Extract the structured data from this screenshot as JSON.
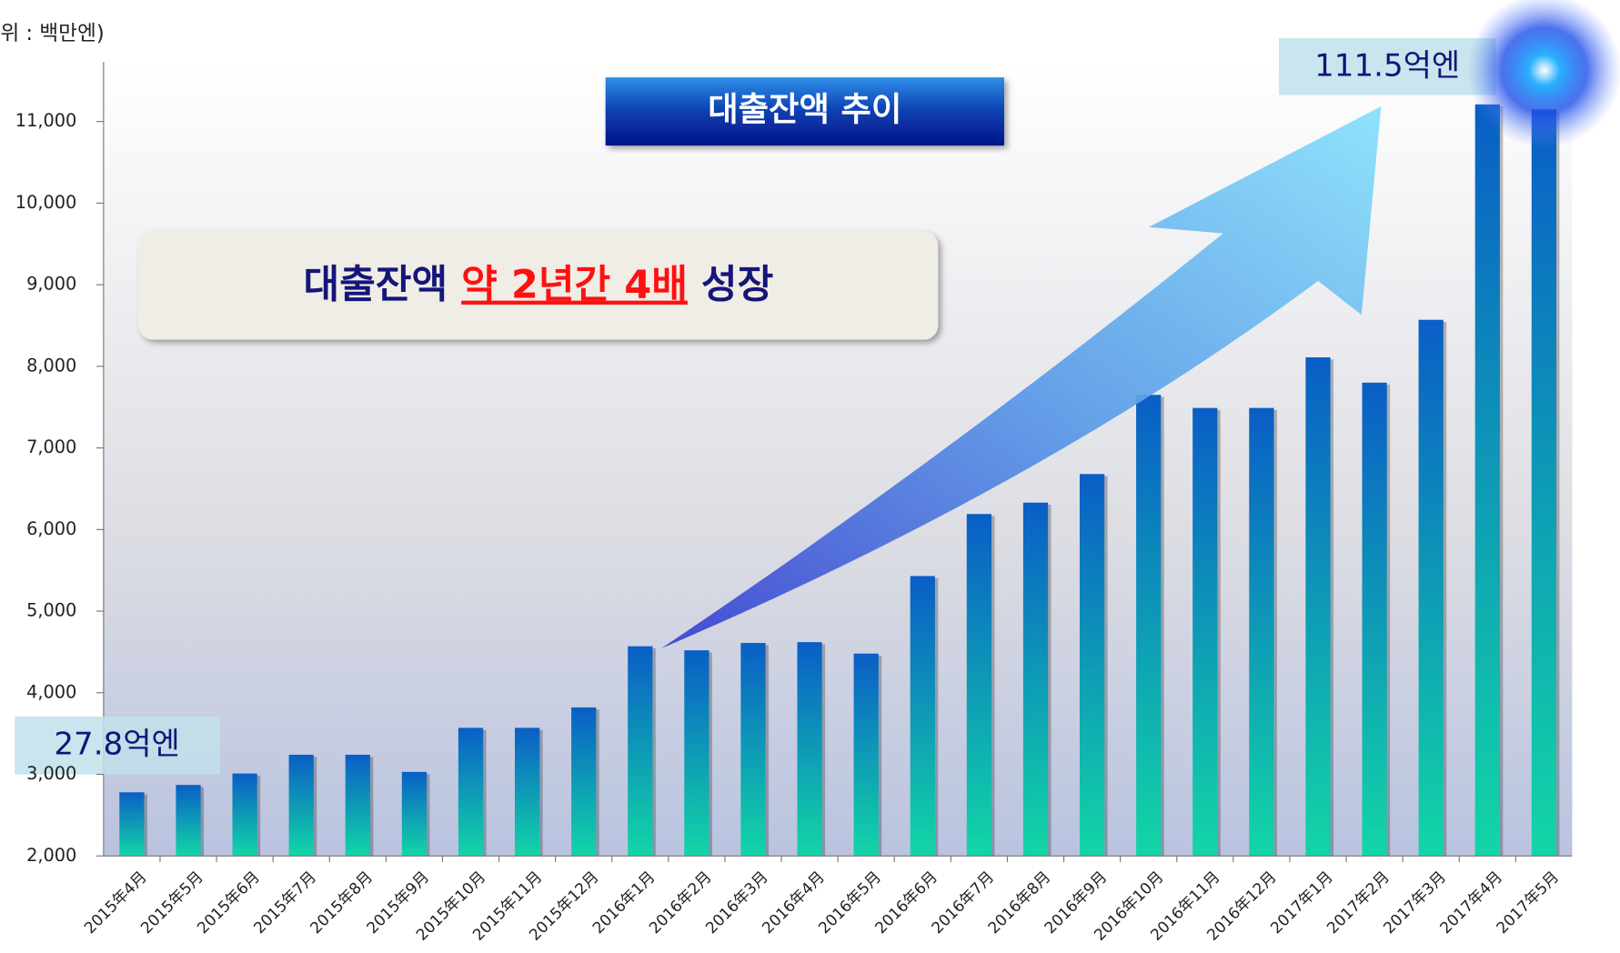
{
  "chart_data": {
    "type": "bar",
    "title": "대출잔액 추이",
    "y_label": "위 : 백만엔)",
    "callout": [
      "대출잔액",
      "약 2년간 4배",
      "성장"
    ],
    "annotations": [
      "27.8억엔",
      "111.5억엔"
    ],
    "categories": [
      "2015年4月",
      "2015年5月",
      "2015年6月",
      "2015年7月",
      "2015年8月",
      "2015年9月",
      "2015年10月",
      "2015年11月",
      "2015年12月",
      "2016年1月",
      "2016年2月",
      "2016年3月",
      "2016年4月",
      "2016年5月",
      "2016年6月",
      "2016年7月",
      "2016年8月",
      "2016年9月",
      "2016年10月",
      "2016年11月",
      "2016年12月",
      "2017年1月",
      "2017年2月",
      "2017年3月",
      "2017年4月",
      "2017年5月"
    ],
    "values": [
      2780,
      2870,
      3010,
      3240,
      3240,
      3030,
      3570,
      3570,
      3820,
      4570,
      4520,
      4610,
      4620,
      4480,
      5430,
      6190,
      6330,
      6680,
      7650,
      7490,
      7490,
      8110,
      7800,
      8570,
      11210,
      11150
    ],
    "color": [
      "#0a5ec6",
      "#12d6a6"
    ],
    "ylim": [
      2000,
      11730
    ],
    "yticks": [
      {
        "value": 2000,
        "label": "2,000"
      },
      {
        "value": 3000,
        "label": "3,000"
      },
      {
        "value": 4000,
        "label": "4,000"
      },
      {
        "value": 5000,
        "label": "5,000"
      },
      {
        "value": 6000,
        "label": "6,000"
      },
      {
        "value": 7000,
        "label": "7,000"
      },
      {
        "value": 8000,
        "label": "8,000"
      },
      {
        "value": 9000,
        "label": "9,000"
      },
      {
        "value": 10000,
        "label": "10,000"
      },
      {
        "value": 11000,
        "label": "11,000"
      }
    ]
  }
}
